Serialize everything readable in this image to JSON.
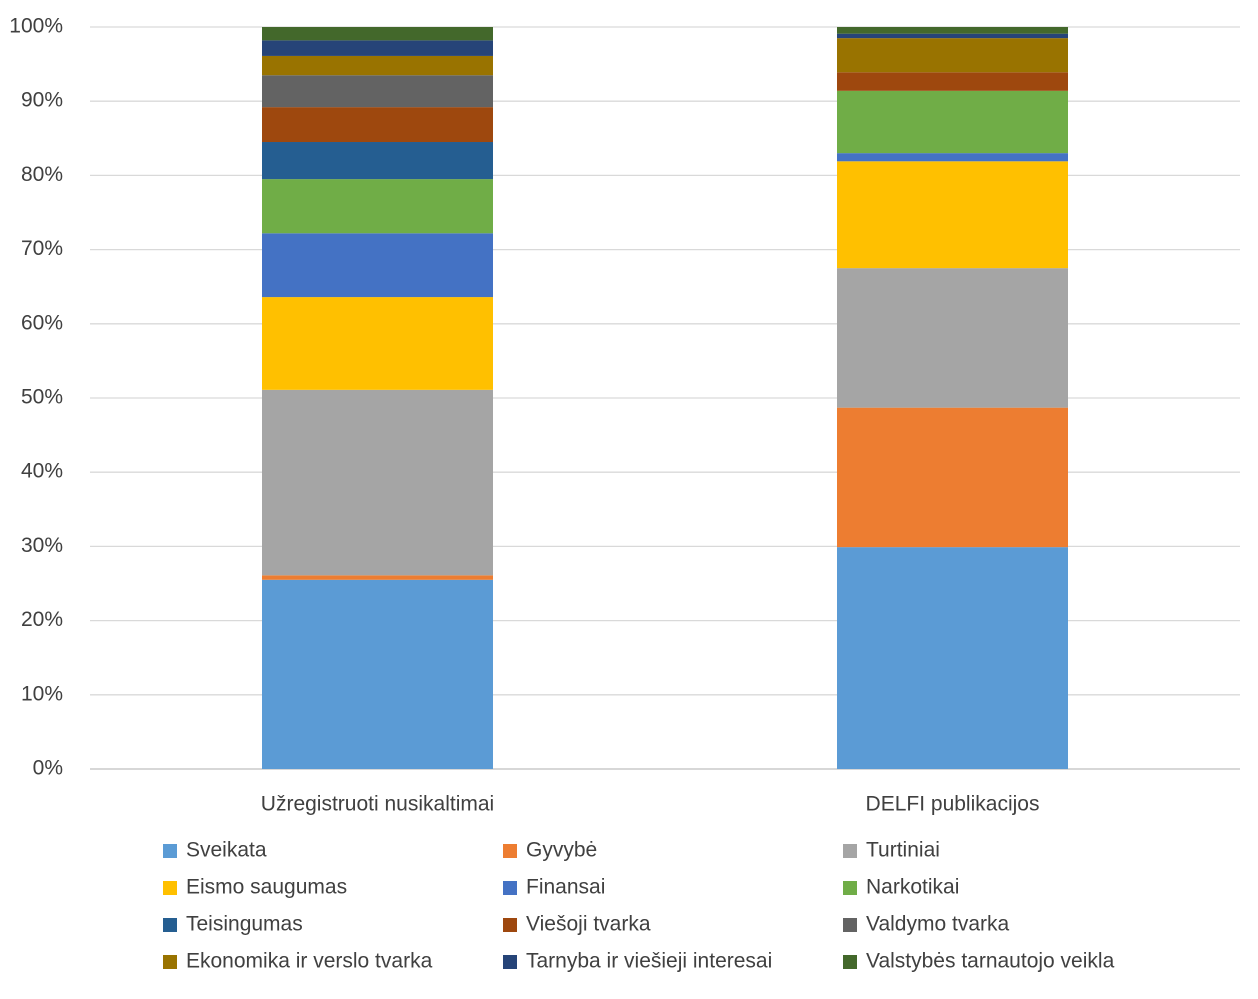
{
  "chart_data": {
    "type": "stacked-bar",
    "categories": [
      "Užregistruoti nusikaltimai",
      "DELFI publikacijos"
    ],
    "series": [
      {
        "name": "Sveikata",
        "color": "#5b9bd5",
        "values": [
          25.5,
          29.9
        ]
      },
      {
        "name": "Gyvybė",
        "color": "#ed7d31",
        "values": [
          0.6,
          18.8
        ]
      },
      {
        "name": "Turtiniai",
        "color": "#a5a5a5",
        "values": [
          25.0,
          18.8
        ]
      },
      {
        "name": "Eismo saugumas",
        "color": "#ffc000",
        "values": [
          12.5,
          14.4
        ]
      },
      {
        "name": "Finansai",
        "color": "#4472c4",
        "values": [
          8.6,
          1.1
        ]
      },
      {
        "name": "Narkotikai",
        "color": "#70ad47",
        "values": [
          7.3,
          8.4
        ]
      },
      {
        "name": "Teisingumas",
        "color": "#255e91",
        "values": [
          5.0,
          0
        ]
      },
      {
        "name": "Viešoji tvarka",
        "color": "#9e480e",
        "values": [
          4.7,
          2.5
        ]
      },
      {
        "name": "Valdymo tvarka",
        "color": "#636363",
        "values": [
          4.3,
          0
        ]
      },
      {
        "name": "Ekonomika ir verslo tvarka",
        "color": "#997300",
        "values": [
          2.6,
          4.6
        ]
      },
      {
        "name": "Tarnyba ir viešieji interesai",
        "color": "#264478",
        "values": [
          2.1,
          0.6
        ]
      },
      {
        "name": "Valstybės tarnautojo veikla",
        "color": "#43682b",
        "values": [
          1.8,
          0.9
        ]
      }
    ],
    "ylim": [
      0,
      100
    ],
    "yticks": [
      {
        "value": 0,
        "label": "0%"
      },
      {
        "value": 10,
        "label": "10%"
      },
      {
        "value": 20,
        "label": "20%"
      },
      {
        "value": 30,
        "label": "30%"
      },
      {
        "value": 40,
        "label": "40%"
      },
      {
        "value": 50,
        "label": "50%"
      },
      {
        "value": 60,
        "label": "60%"
      },
      {
        "value": 70,
        "label": "70%"
      },
      {
        "value": 80,
        "label": "80%"
      },
      {
        "value": 90,
        "label": "90%"
      },
      {
        "value": 100,
        "label": "100%"
      }
    ],
    "grid": true,
    "legend": "bottom"
  }
}
